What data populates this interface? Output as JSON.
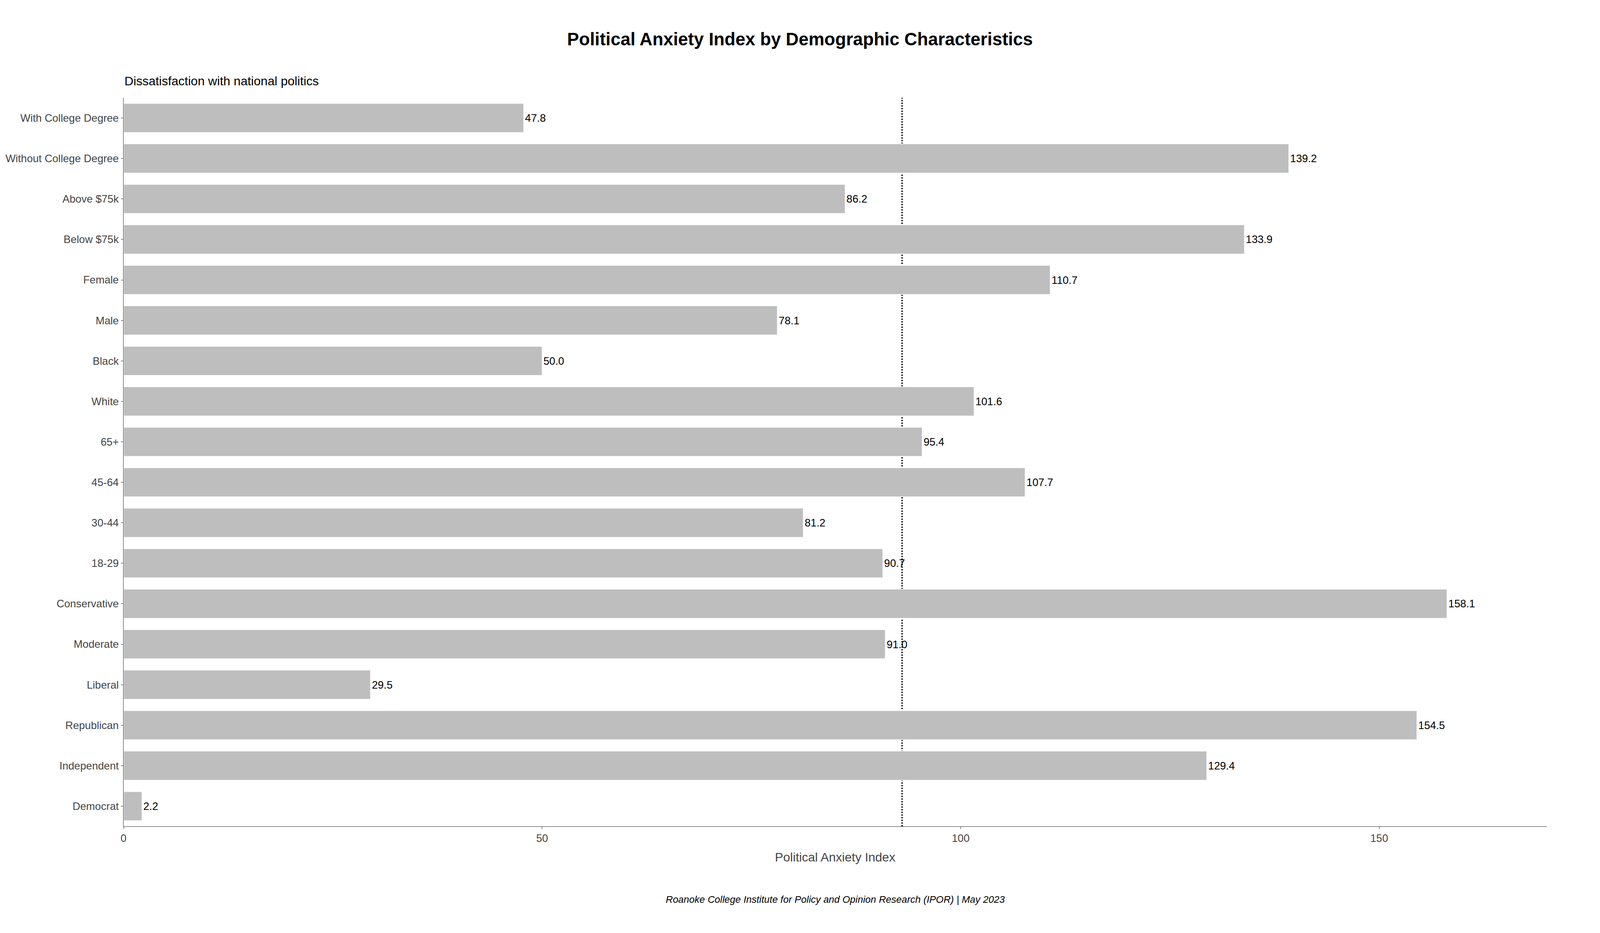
{
  "chart_data": {
    "type": "bar",
    "orientation": "horizontal",
    "title": "Political Anxiety Index by Demographic Characteristics",
    "subtitle": "Dissatisfaction with national politics",
    "xlabel": "Political Anxiety Index",
    "footer": "Roanoke College Institute for Policy and Opinion Research (IPOR) | May 2023",
    "categories": [
      "With College Degree",
      "Without College Degree",
      "Above $75k",
      "Below $75k",
      "Female",
      "Male",
      "Black",
      "White",
      "65+",
      "45-64",
      "30-44",
      "18-29",
      "Conservative",
      "Moderate",
      "Liberal",
      "Republican",
      "Independent",
      "Democrat"
    ],
    "values": [
      47.8,
      139.2,
      86.2,
      133.9,
      110.7,
      78.1,
      50.0,
      101.6,
      95.4,
      107.7,
      81.2,
      90.7,
      158.1,
      91.0,
      29.5,
      154.5,
      129.4,
      2.2
    ],
    "value_labels": [
      "47.8",
      "139.2",
      "86.2",
      "133.9",
      "110.7",
      "78.1",
      "50.0",
      "101.6",
      "95.4",
      "107.7",
      "81.2",
      "90.7",
      "158.1",
      "91.0",
      "29.5",
      "154.5",
      "129.4",
      "2.2"
    ],
    "data_labels": true,
    "color": "#BEBEBE",
    "reference_line": {
      "x": 93,
      "line_style": "dotted",
      "color": "#000000"
    },
    "xlim": [
      0,
      170
    ],
    "xticks": [
      0,
      50,
      100,
      150
    ],
    "grid": false
  }
}
